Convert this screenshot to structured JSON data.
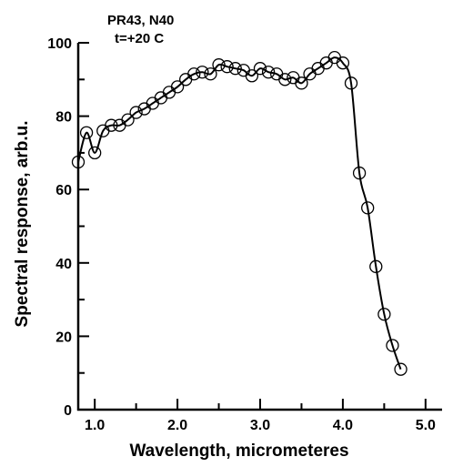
{
  "chart_data": {
    "type": "line",
    "title_lines": [
      "PR43, N40",
      "t=+20 C"
    ],
    "xlabel": "Wavelength, micrometeres",
    "ylabel": "Spectral response, arb.u.",
    "xlim": [
      0.8,
      5.2
    ],
    "ylim": [
      0,
      100
    ],
    "x_tick_values": [
      1.0,
      2.0,
      3.0,
      4.0,
      5.0
    ],
    "x_tick_labels": [
      "1.0",
      "2.0",
      "3.0",
      "4.0",
      "5.0"
    ],
    "y_tick_values": [
      0,
      20,
      40,
      60,
      80,
      100
    ],
    "y_tick_labels": [
      "0",
      "20",
      "40",
      "60",
      "80",
      "100"
    ],
    "grid": false,
    "legend": "none",
    "marker": "open-circle",
    "line_color": "#000000",
    "series": [
      {
        "x": [
          0.8,
          0.9,
          1.0,
          1.1,
          1.2,
          1.3,
          1.4,
          1.5,
          1.6,
          1.7,
          1.8,
          1.9,
          2.0,
          2.1,
          2.2,
          2.3,
          2.4,
          2.5,
          2.6,
          2.7,
          2.8,
          2.9,
          3.0,
          3.1,
          3.2,
          3.3,
          3.4,
          3.5,
          3.6,
          3.7,
          3.8,
          3.9,
          4.0,
          4.1,
          4.2,
          4.3,
          4.4,
          4.5,
          4.6,
          4.7
        ],
        "y": [
          67.5,
          75.5,
          70.0,
          76.0,
          77.5,
          77.5,
          79.0,
          81.0,
          82.0,
          83.5,
          85.0,
          86.5,
          88.0,
          90.0,
          91.5,
          92.0,
          91.5,
          94.0,
          93.5,
          93.0,
          92.5,
          91.0,
          93.0,
          92.0,
          91.5,
          90.0,
          90.5,
          89.0,
          91.5,
          93.0,
          94.5,
          96.0,
          94.5,
          89.0,
          64.5,
          55.0,
          39.0,
          26.0,
          17.5,
          11.0
        ]
      }
    ]
  }
}
